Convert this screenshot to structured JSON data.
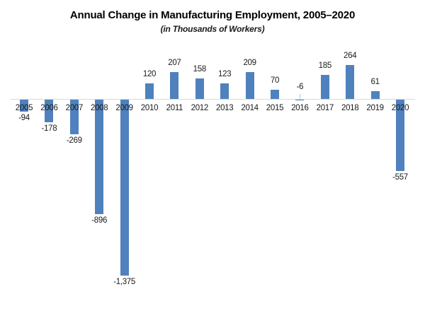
{
  "header": {
    "title": "Annual Change in Manufacturing Employment, 2005–2020",
    "subtitle": "(in Thousands of Workers)"
  },
  "chart_data": {
    "type": "bar",
    "title": "Annual Change in Manufacturing Employment, 2005–2020",
    "subtitle": "(in Thousands of Workers)",
    "categories": [
      "2005",
      "2006",
      "2007",
      "2008",
      "2009",
      "2010",
      "2011",
      "2012",
      "2013",
      "2014",
      "2015",
      "2016",
      "2017",
      "2018",
      "2019",
      "2020"
    ],
    "values": [
      -94,
      -178,
      -269,
      -896,
      -1375,
      120,
      207,
      158,
      123,
      209,
      70,
      -6,
      185,
      264,
      61,
      -557
    ],
    "labels": [
      "-94",
      "-178",
      "-269",
      "-896",
      "-1,375",
      "120",
      "207",
      "158",
      "123",
      "209",
      "70",
      "-6",
      "185",
      "264",
      "61",
      "-557"
    ],
    "xlabel": "",
    "ylabel": "",
    "ylim": [
      -1400,
      300
    ],
    "grid": false,
    "legend_position": "none",
    "bar_color": "#4F81BD",
    "axis_color": "#D9D9D9",
    "label_color": "#1a1a1a",
    "leader_line_color": "#aebfd6"
  }
}
